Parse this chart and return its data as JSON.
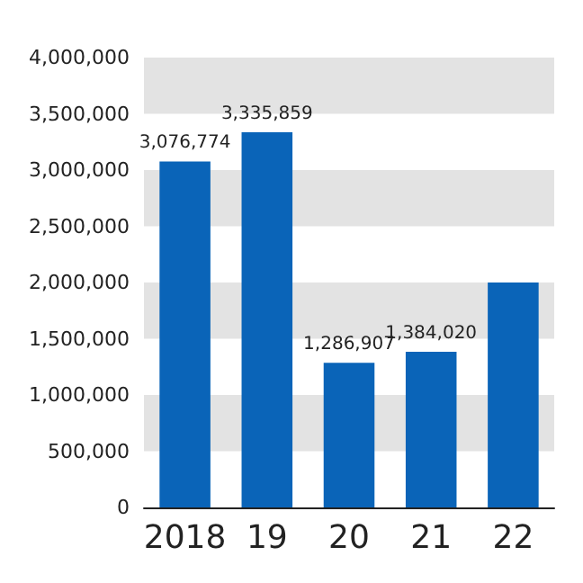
{
  "chart_data": {
    "type": "bar",
    "categories": [
      "2018",
      "19",
      "20",
      "21",
      "22"
    ],
    "values": [
      3076774,
      3335859,
      1286907,
      1384020,
      2000000
    ],
    "value_labels": [
      "3,076,774",
      "3,335,859",
      "1,286,907",
      "1,384,020",
      null
    ],
    "color": "#0a64b8",
    "ylim": [
      0,
      4000000
    ],
    "yticks": [
      {
        "value": 0,
        "label": "0"
      },
      {
        "value": 500000,
        "label": "500,000"
      },
      {
        "value": 1000000,
        "label": "1,000,000"
      },
      {
        "value": 1500000,
        "label": "1,500,000"
      },
      {
        "value": 2000000,
        "label": "2,000,000"
      },
      {
        "value": 2500000,
        "label": "2,500,000"
      },
      {
        "value": 3000000,
        "label": "3,000,000"
      },
      {
        "value": 3500000,
        "label": "3,500,000"
      },
      {
        "value": 4000000,
        "label": "4,000,000"
      }
    ],
    "bands": [
      {
        "axis": "y",
        "from": 500000,
        "to": 1000000,
        "color": "#e3e3e3"
      },
      {
        "axis": "y",
        "from": 1500000,
        "to": 2000000,
        "color": "#e3e3e3"
      },
      {
        "axis": "y",
        "from": 2500000,
        "to": 3000000,
        "color": "#e3e3e3"
      },
      {
        "axis": "y",
        "from": 3500000,
        "to": 4000000,
        "color": "#e3e3e3"
      }
    ]
  }
}
